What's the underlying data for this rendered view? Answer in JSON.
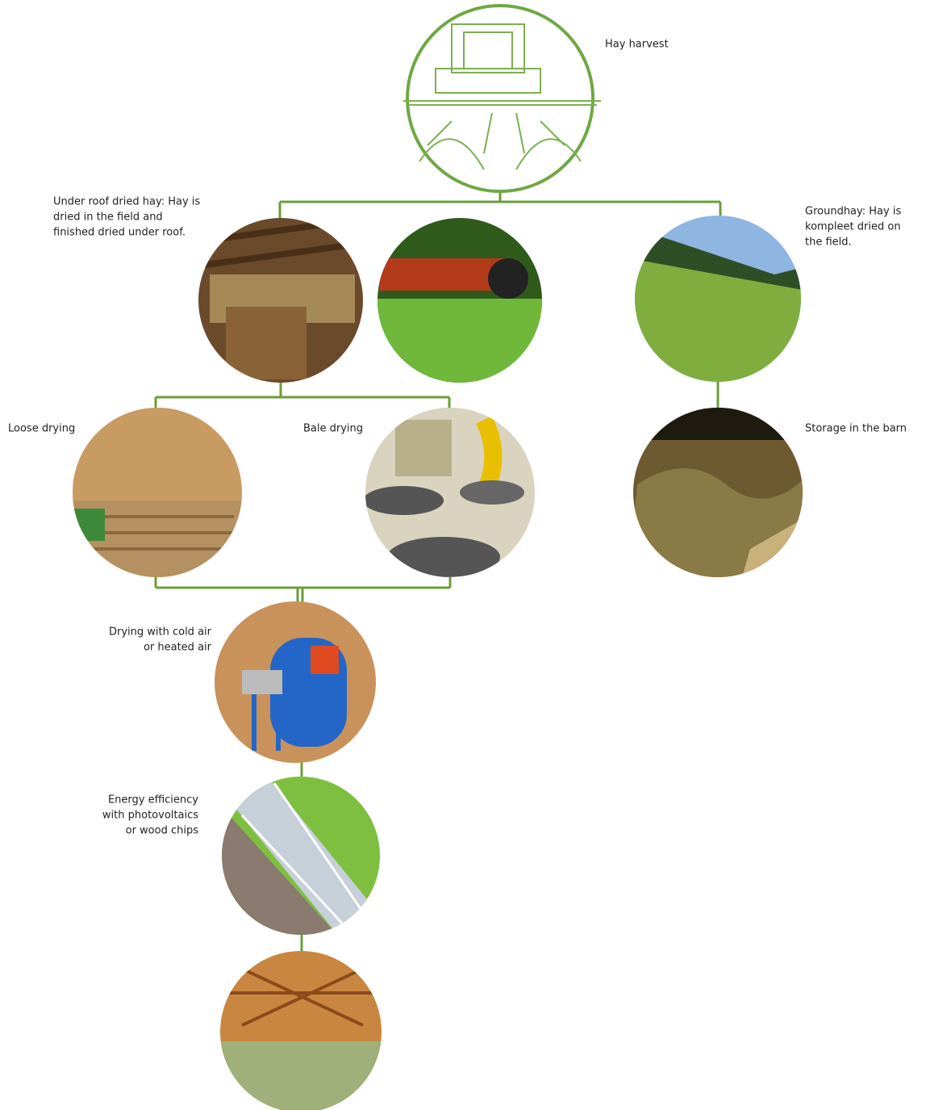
{
  "nodes": [
    {
      "lines": [
        "Hay harvest"
      ]
    },
    {
      "lines": [
        "Under roof dried hay: Hay is",
        "dried in the field and",
        "finished dried under roof."
      ]
    },
    {
      "lines": [
        "Groundhay: Hay is",
        "kompleet dried on",
        "the field."
      ]
    },
    {
      "lines": [
        "Loose drying"
      ]
    },
    {
      "lines": [
        "Bale drying"
      ]
    },
    {
      "lines": [
        "Storage in the barn"
      ]
    },
    {
      "lines": [
        "Drying with cold air",
        "or heated air"
      ]
    },
    {
      "lines": [
        "Energy efficiency",
        "with photovoltaics",
        "or wood chips"
      ]
    }
  ]
}
